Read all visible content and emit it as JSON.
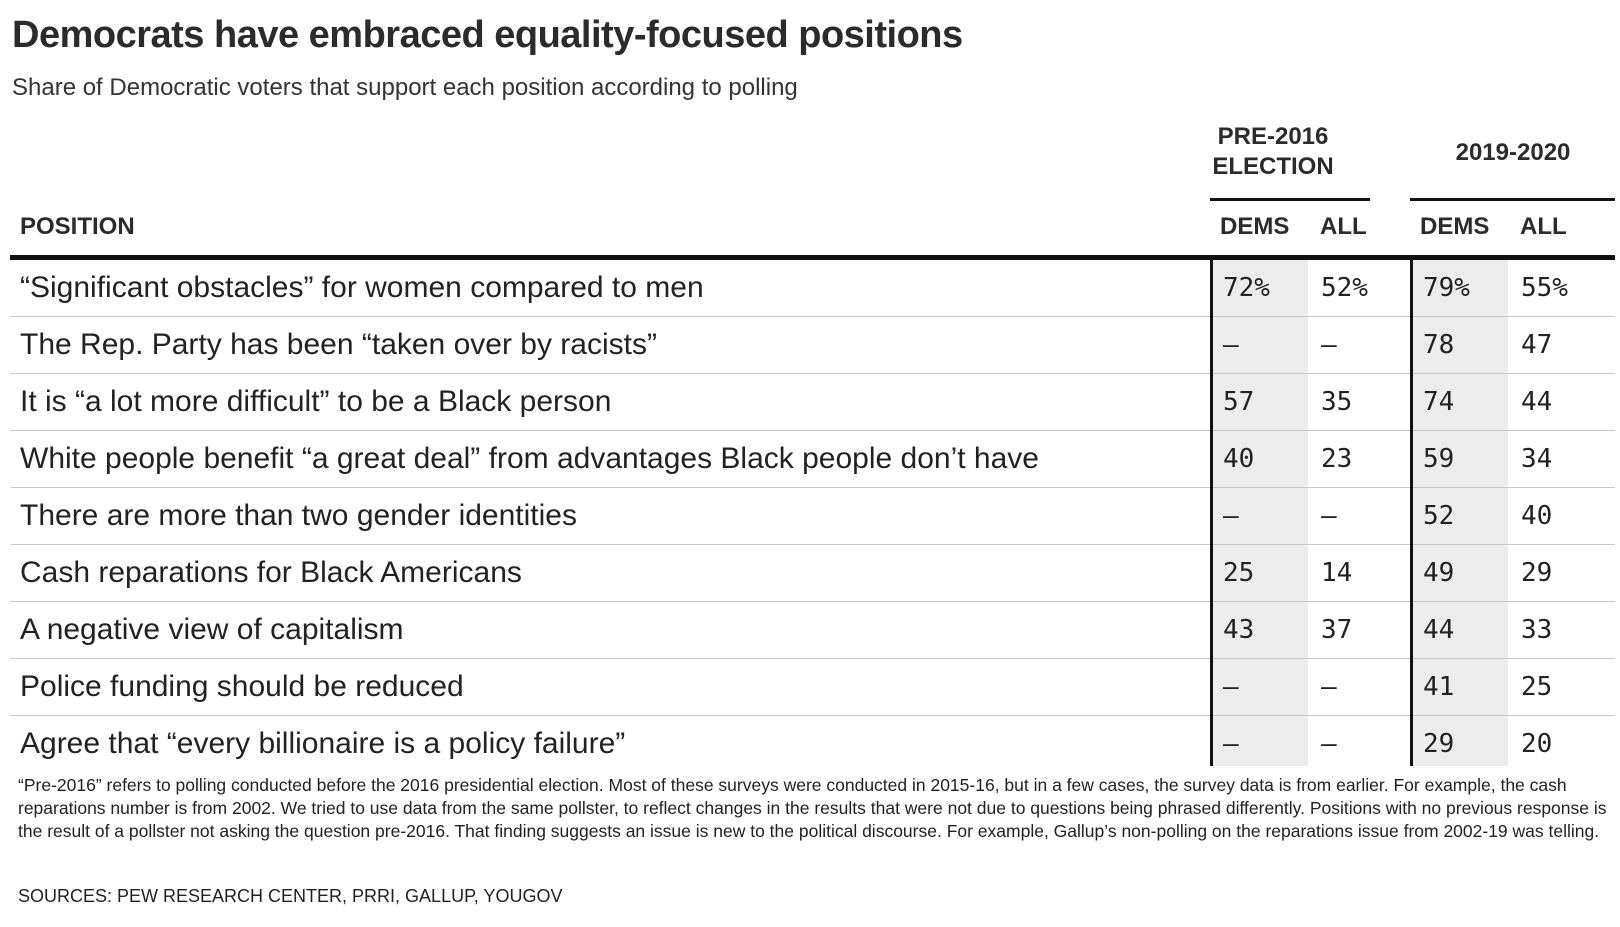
{
  "chart_data": {
    "type": "table",
    "title": "Democrats have embraced equality-focused positions",
    "subtitle": "Share of Democratic voters that support each position according to polling",
    "column_groups": [
      {
        "label_lines": [
          "PRE-2016",
          "ELECTION"
        ],
        "columns": [
          "DEMS",
          "ALL"
        ]
      },
      {
        "label_lines": [
          "2019-2020"
        ],
        "columns": [
          "DEMS",
          "ALL"
        ]
      }
    ],
    "position_header": "POSITION",
    "rows": [
      {
        "position": "“Significant obstacles” for women compared to men",
        "values": [
          "72%",
          "52%",
          "79%",
          "55%"
        ]
      },
      {
        "position": "The Rep. Party has been “taken over by racists”",
        "values": [
          "—",
          "—",
          "78",
          "47"
        ]
      },
      {
        "position": "It is “a lot more difficult” to be a Black person",
        "values": [
          "57",
          "35",
          "74",
          "44"
        ]
      },
      {
        "position": "White people benefit “a great deal” from advantages Black people don’t have",
        "values": [
          "40",
          "23",
          "59",
          "34"
        ]
      },
      {
        "position": "There are more than two gender identities",
        "values": [
          "—",
          "—",
          "52",
          "40"
        ]
      },
      {
        "position": "Cash reparations for Black Americans",
        "values": [
          "25",
          "14",
          "49",
          "29"
        ]
      },
      {
        "position": "A negative view of capitalism",
        "values": [
          "43",
          "37",
          "44",
          "33"
        ]
      },
      {
        "position": "Police funding should be reduced",
        "values": [
          "—",
          "—",
          "41",
          "25"
        ]
      },
      {
        "position": "Agree that “every billionaire is a policy failure”",
        "values": [
          "—",
          "—",
          "29",
          "20"
        ]
      }
    ],
    "footnote": "“Pre-2016” refers to polling conducted before the 2016 presidential election. Most of these surveys were conducted in 2015-16, but in a few cases, the survey data is from earlier. For example, the cash reparations number is from 2002. We tried to use data from the same pollster, to reflect changes in the results that were not due to questions being phrased differently. Positions with no previous response is the result of a pollster not asking the question pre-2016. That finding suggests an issue is new to the political discourse. For example, Gallup’s non-polling on the reparations issue from 2002-19 was telling.",
    "sources": "SOURCES: PEW RESEARCH CENTER, PRRI, GALLUP, YOUGOV",
    "colors": {
      "text": "#222222",
      "rule": "#111111",
      "shade": "#ececec",
      "row_divider": "#c9c9c9"
    }
  }
}
